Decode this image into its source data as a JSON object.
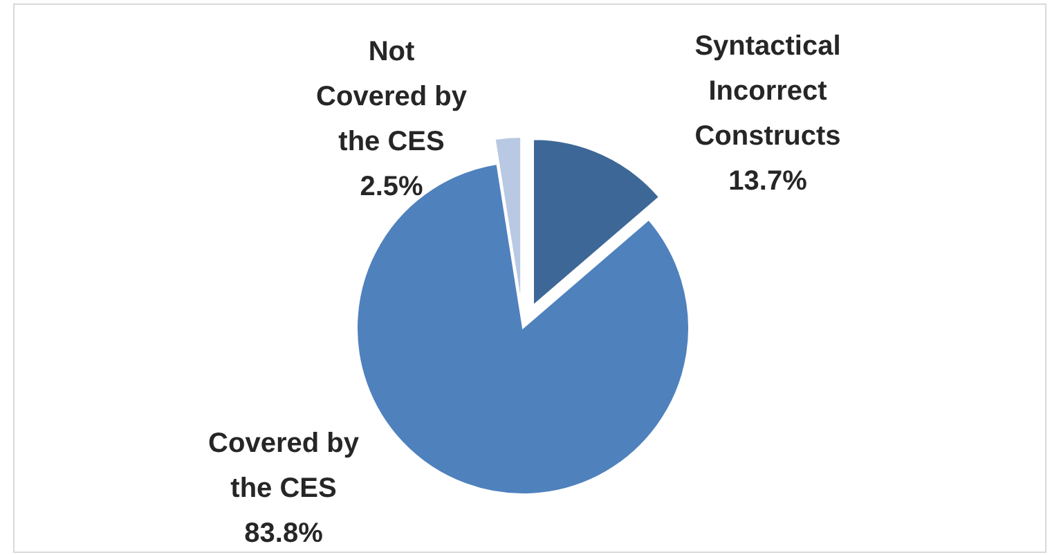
{
  "chart_data": {
    "type": "pie",
    "categories": [
      "Syntactical Incorrect Constructs",
      "Covered by the CES",
      "Not Covered by the CES"
    ],
    "values": [
      13.7,
      83.8,
      2.5
    ],
    "colors": [
      "#3d6796",
      "#4f81bd",
      "#b9c9e3"
    ],
    "value_labels": [
      "13.7%",
      "83.8%",
      "2.5%"
    ]
  }
}
